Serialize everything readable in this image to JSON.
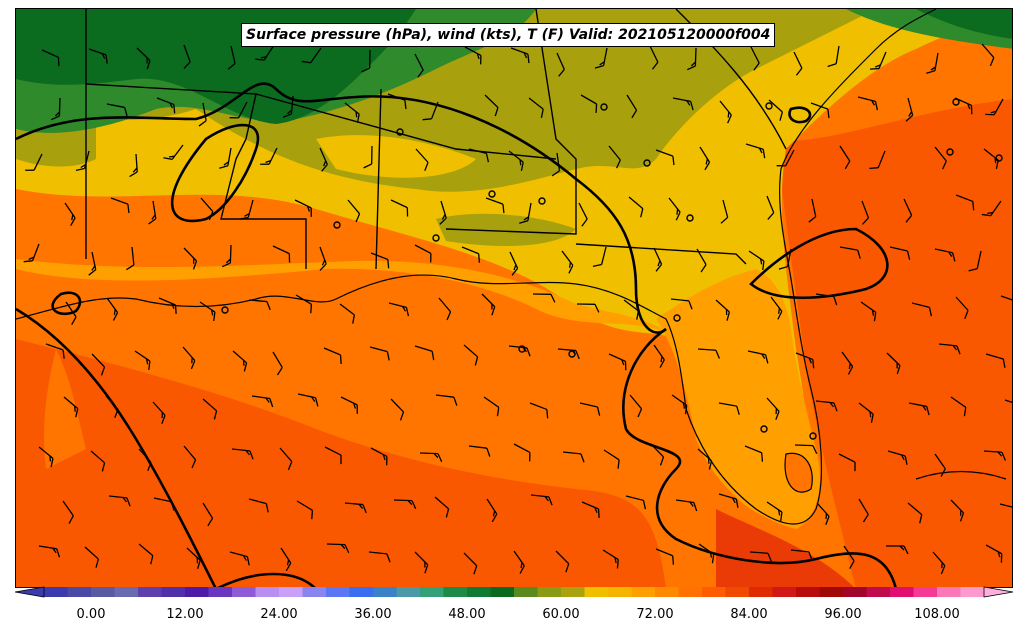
{
  "map": {
    "title": "Surface pressure (hPa), wind (kts), T (F) Valid: 202105120000f004"
  },
  "colorbar": {
    "min": -6,
    "step": 3,
    "colors": [
      "#3b3bb0",
      "#4a4aa6",
      "#5a5aa0",
      "#6a6ab0",
      "#5d3fae",
      "#5030a8",
      "#4c1aa6",
      "#6a36c0",
      "#8e5ad8",
      "#b88ef0",
      "#c9a0f8",
      "#8a84f0",
      "#5a78f4",
      "#3a6ef0",
      "#3a82c8",
      "#4a98a8",
      "#32a078",
      "#1e8a4a",
      "#0e7a32",
      "#0a6a1e",
      "#5a8a1e",
      "#8a9a14",
      "#aaa20e",
      "#f0c000",
      "#f5b400",
      "#ffa000",
      "#ff8a00",
      "#ff7200",
      "#fd5c00",
      "#f04a00",
      "#e02a00",
      "#d01818",
      "#b80c0c",
      "#a00808",
      "#a0062a",
      "#c00a50",
      "#e00e70",
      "#f43a94",
      "#f878b8",
      "#fc9ad0"
    ],
    "ticks": [
      "0.00",
      "12.00",
      "24.00",
      "36.00",
      "48.00",
      "60.00",
      "72.00",
      "84.00",
      "96.00",
      "108.00"
    ],
    "tick_values": [
      0,
      12,
      24,
      36,
      48,
      60,
      72,
      84,
      96,
      108
    ]
  },
  "colors": {
    "dark_green": "#0b6b1e",
    "green": "#2e8a2a",
    "olive": "#a8a00c",
    "yellow": "#f0c000",
    "light_orange": "#ffa000",
    "orange": "#ff7500",
    "deep_orange": "#fa5800",
    "red_orange": "#ea3a06"
  }
}
